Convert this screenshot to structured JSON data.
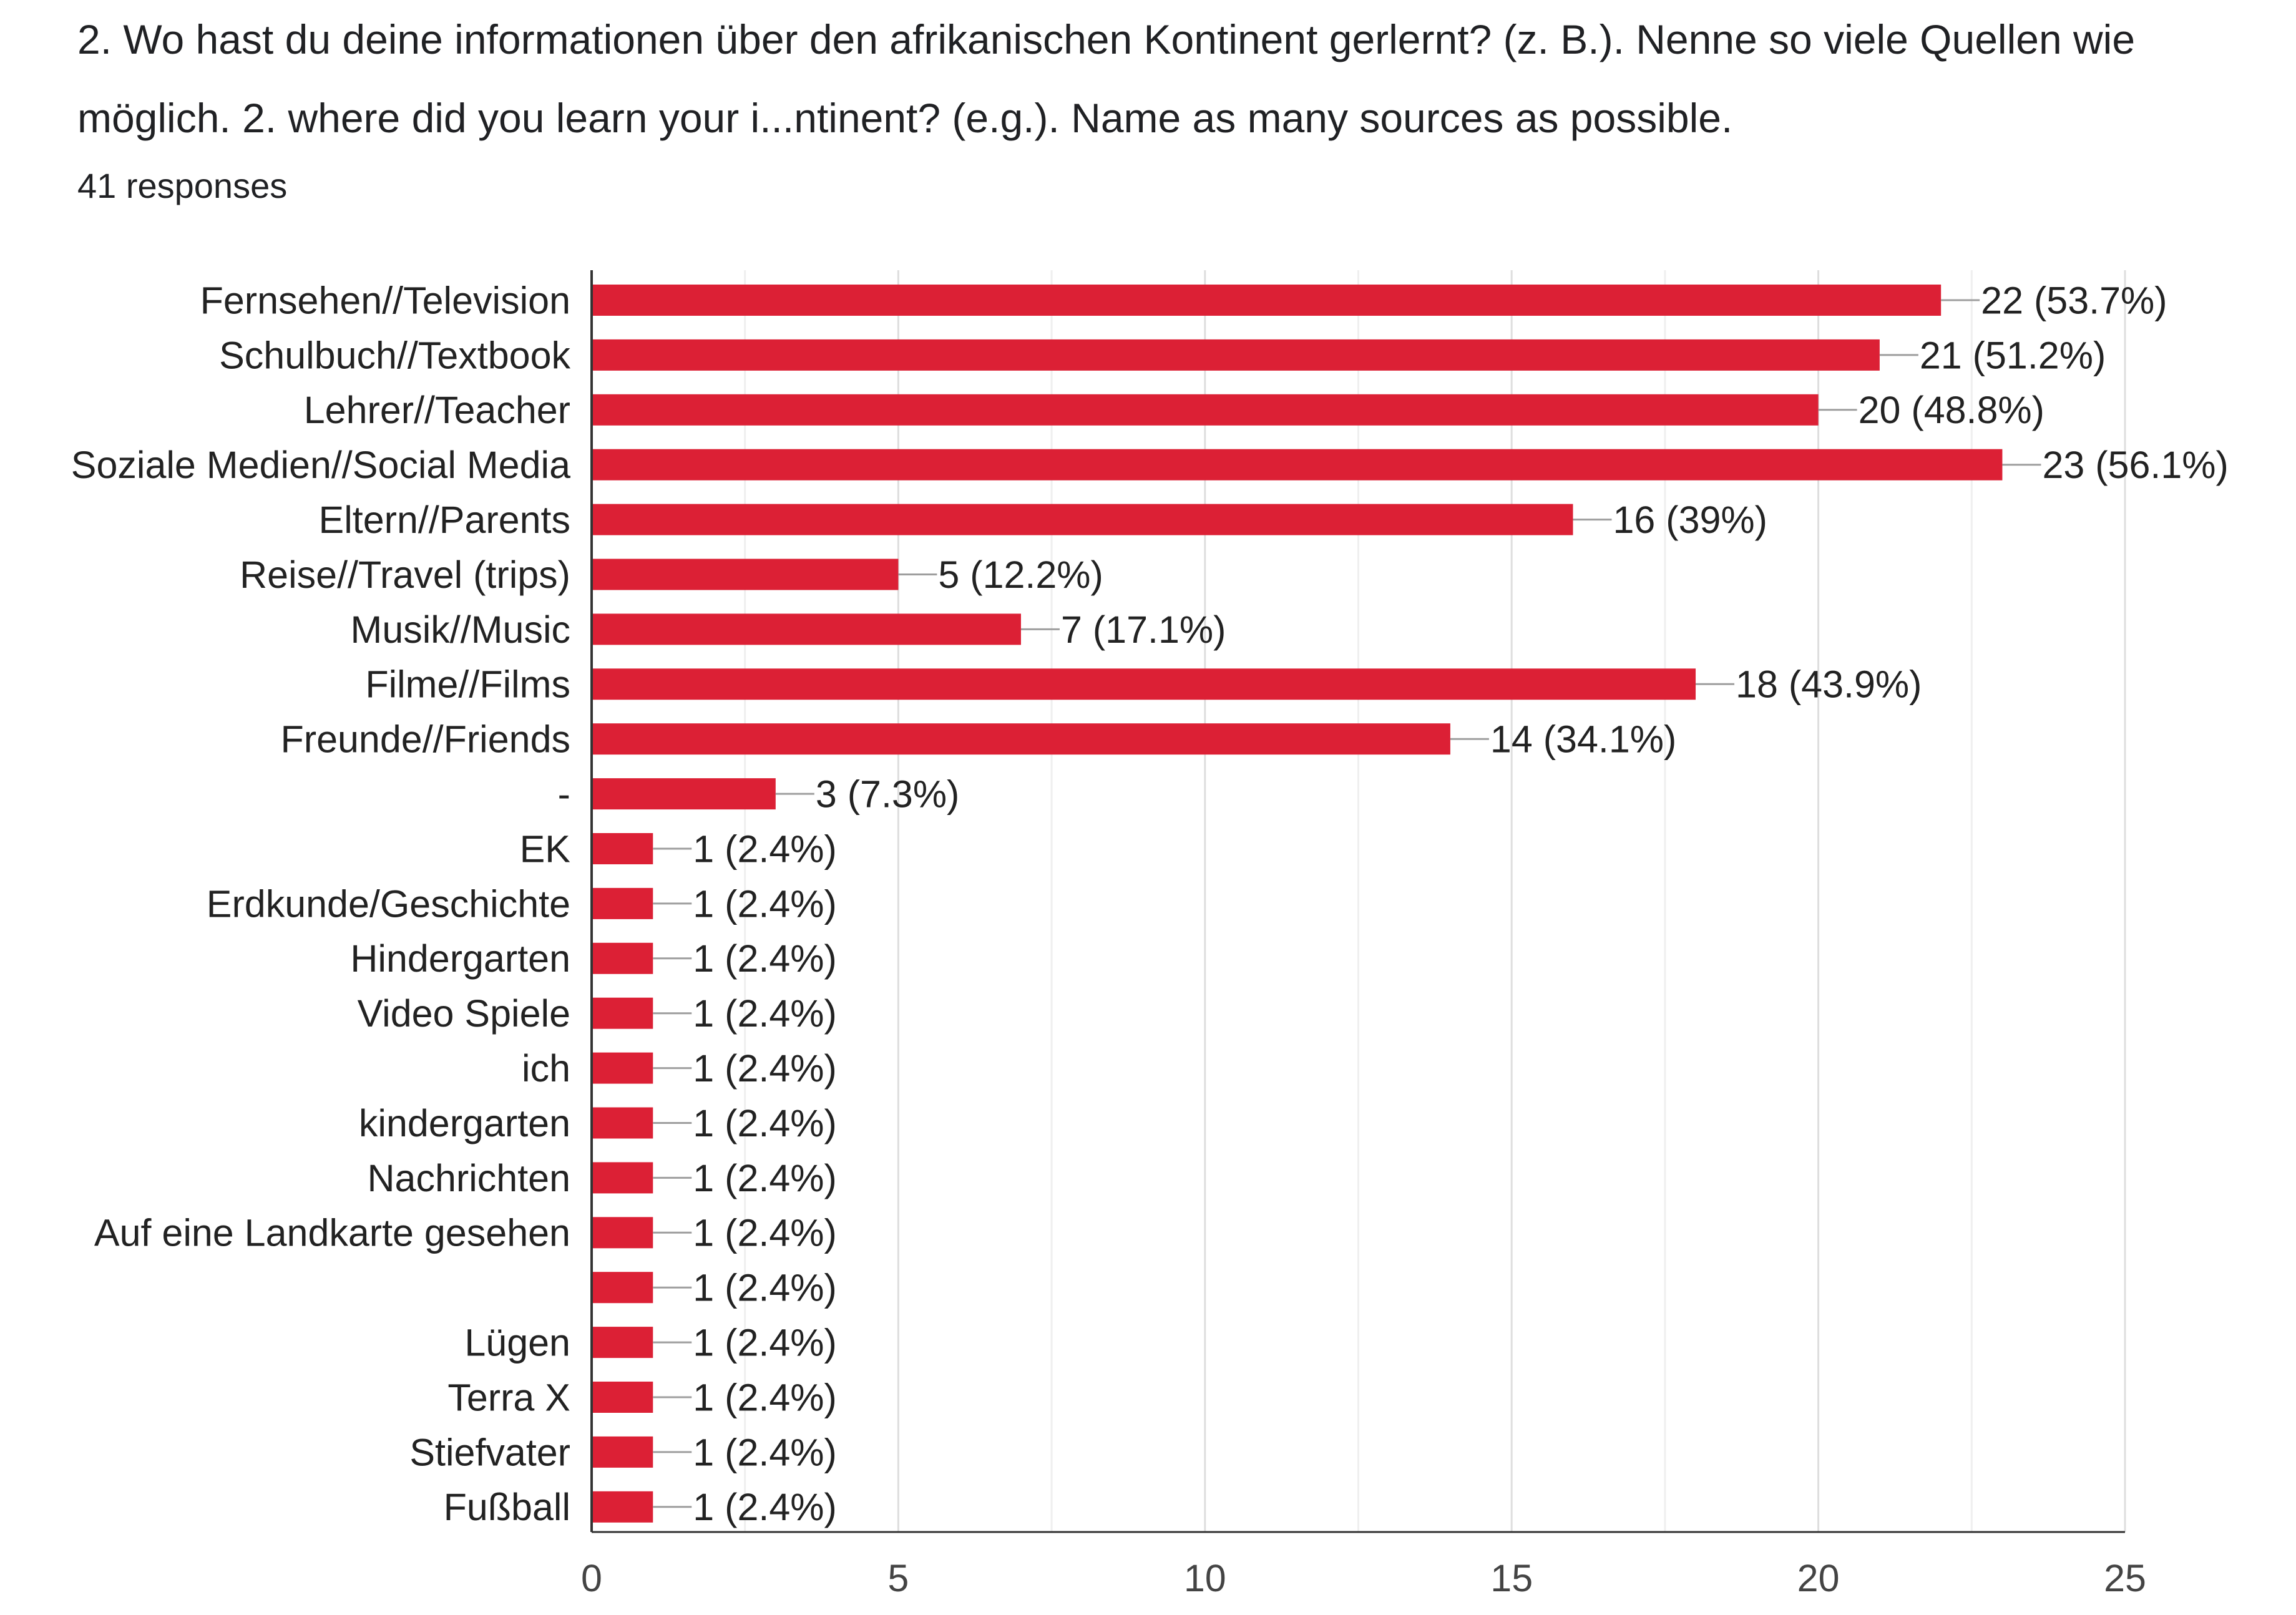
{
  "question": {
    "title": "2. Wo hast du deine informationen über den afrikanischen Kontinent gerlernt? (z. B.). Nenne so viele Quellen wie möglich.  2. where did you learn your i...ntinent? (e.g.). Name as many sources as possible.",
    "responses": "41 responses"
  },
  "chart_data": {
    "type": "bar",
    "orientation": "horizontal",
    "title": "",
    "xlabel": "",
    "ylabel": "",
    "xlim": [
      0,
      25
    ],
    "xticks": [
      0,
      5,
      10,
      15,
      20,
      25
    ],
    "grid": true,
    "bar_color": "#dc2035",
    "categories": [
      "Fernsehen//Television",
      "Schulbuch//Textbook",
      "Lehrer//Teacher",
      "Soziale Medien//Social Media",
      "Eltern//Parents",
      "Reise//Travel (trips)",
      "Musik//Music",
      "Filme//Films",
      "Freunde//Friends",
      "-",
      "EK",
      "Erdkunde/Geschichte",
      "Hindergarten",
      "Video Spiele",
      "ich",
      "kindergarten",
      "Nachrichten",
      "Auf eine Landkarte gesehen",
      "",
      "Lügen",
      "Terra X",
      "Stiefvater",
      "Fußball"
    ],
    "values": [
      22,
      21,
      20,
      23,
      16,
      5,
      7,
      18,
      14,
      3,
      1,
      1,
      1,
      1,
      1,
      1,
      1,
      1,
      1,
      1,
      1,
      1,
      1
    ],
    "value_labels": [
      "22 (53.7%)",
      "21 (51.2%)",
      "20 (48.8%)",
      "23 (56.1%)",
      "16 (39%)",
      "5 (12.2%)",
      "7 (17.1%)",
      "18 (43.9%)",
      "14 (34.1%)",
      "3 (7.3%)",
      "1 (2.4%)",
      "1 (2.4%)",
      "1 (2.4%)",
      "1 (2.4%)",
      "1 (2.4%)",
      "1 (2.4%)",
      "1 (2.4%)",
      "1 (2.4%)",
      "1 (2.4%)",
      "1 (2.4%)",
      "1 (2.4%)",
      "1 (2.4%)",
      "1 (2.4%)"
    ]
  }
}
